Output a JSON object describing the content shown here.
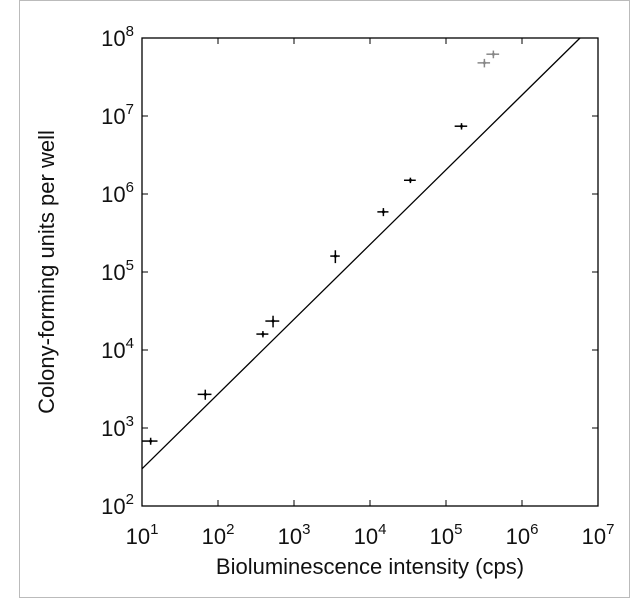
{
  "chart_data": {
    "type": "scatter",
    "x_label": "Bioluminescence intensity (cps)",
    "y_label": "Colony-forming units per well",
    "x_scale": "log",
    "y_scale": "log",
    "xlim": [
      10,
      10000000
    ],
    "ylim": [
      100,
      100000000
    ],
    "xticks": [
      {
        "value": 10,
        "label": "10",
        "exponent": "1"
      },
      {
        "value": 100,
        "label": "10",
        "exponent": "2"
      },
      {
        "value": 1000,
        "label": "10",
        "exponent": "3"
      },
      {
        "value": 10000,
        "label": "10",
        "exponent": "4"
      },
      {
        "value": 100000,
        "label": "10",
        "exponent": "5"
      },
      {
        "value": 1000000,
        "label": "10",
        "exponent": "6"
      },
      {
        "value": 10000000,
        "label": "10",
        "exponent": "7"
      }
    ],
    "yticks": [
      {
        "value": 100,
        "label": "10",
        "exponent": "2"
      },
      {
        "value": 1000,
        "label": "10",
        "exponent": "3"
      },
      {
        "value": 10000,
        "label": "10",
        "exponent": "4"
      },
      {
        "value": 100000,
        "label": "10",
        "exponent": "5"
      },
      {
        "value": 1000000,
        "label": "10",
        "exponent": "6"
      },
      {
        "value": 10000000,
        "label": "10",
        "exponent": "7"
      },
      {
        "value": 100000000,
        "label": "10",
        "exponent": "8"
      }
    ],
    "series": [
      {
        "color": "#000000",
        "x": [
          13,
          68,
          390,
          530,
          3500,
          15000,
          34000,
          160000
        ],
        "values": [
          680,
          2700,
          16000,
          23500,
          160000,
          590000,
          1500000,
          7400000
        ],
        "x_err": [
          3,
          14,
          70,
          110,
          500,
          2500,
          6000,
          30000
        ],
        "y_err": [
          70,
          400,
          1500,
          4000,
          30000,
          70000,
          120000,
          700000
        ]
      },
      {
        "color": "#888888",
        "x": [
          320000,
          420000
        ],
        "values": [
          48000000,
          62000000
        ],
        "x_err": [
          60000,
          80000
        ],
        "y_err": [
          6000000,
          7000000
        ]
      }
    ],
    "fit": {
      "type": "line",
      "color": "#000000",
      "x": [
        10,
        5800000
      ],
      "values": [
        300,
        100000000
      ]
    }
  }
}
